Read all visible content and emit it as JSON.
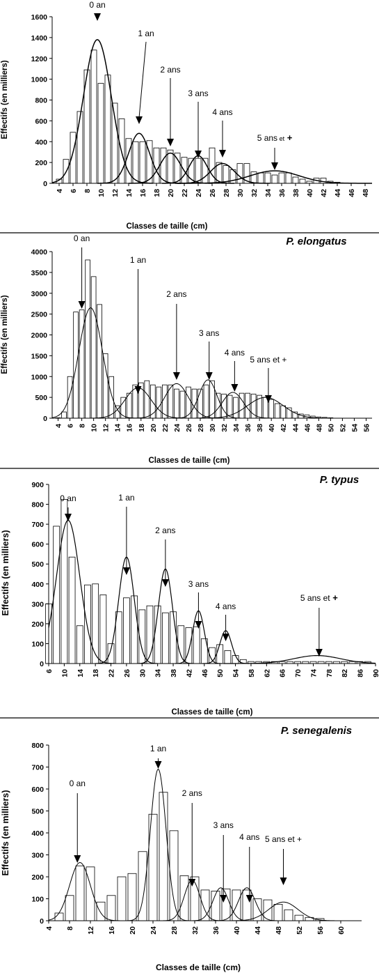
{
  "chart_data": [
    {
      "type": "bar",
      "title": "",
      "xlabel": "Classes de taille (cm)",
      "ylabel": "Effectifs (en milliers)",
      "ylim": [
        0,
        1600
      ],
      "yticks": [
        0,
        200,
        400,
        600,
        800,
        1000,
        1200,
        1400,
        1600
      ],
      "xlim": [
        3,
        49
      ],
      "xticks": [
        4,
        6,
        8,
        10,
        12,
        14,
        16,
        18,
        20,
        22,
        24,
        26,
        28,
        30,
        32,
        34,
        36,
        38,
        40,
        42,
        44,
        46,
        48
      ],
      "grid": false,
      "x": [
        4,
        5,
        6,
        7,
        8,
        9,
        10,
        11,
        12,
        13,
        14,
        15,
        16,
        17,
        18,
        19,
        20,
        21,
        22,
        23,
        24,
        25,
        26,
        27,
        28,
        29,
        30,
        31,
        32,
        33,
        34,
        35,
        36,
        37,
        38,
        39,
        40,
        41,
        42,
        43,
        44
      ],
      "values": [
        40,
        230,
        490,
        690,
        1090,
        1280,
        960,
        1040,
        770,
        620,
        430,
        400,
        400,
        410,
        340,
        340,
        320,
        290,
        250,
        240,
        240,
        240,
        340,
        200,
        170,
        130,
        190,
        190,
        110,
        100,
        100,
        80,
        100,
        100,
        60,
        40,
        20,
        50,
        50,
        20,
        10
      ],
      "series": [
        {
          "label": "0 an",
          "mu": 9.5,
          "sigma": 2.0,
          "peak": 1380
        },
        {
          "label": "1 an",
          "mu": 15.5,
          "sigma": 1.5,
          "peak": 480
        },
        {
          "label": "2 ans",
          "mu": 20,
          "sigma": 1.5,
          "peak": 290
        },
        {
          "label": "3 ans",
          "mu": 24,
          "sigma": 1.3,
          "peak": 265
        },
        {
          "label": "4 ans",
          "mu": 27.5,
          "sigma": 1.7,
          "peak": 190
        },
        {
          "label": "5 ans et +",
          "mu": 35,
          "sigma": 3.5,
          "peak": 120
        }
      ],
      "annotations": [
        {
          "text": "0 an",
          "x": 9.5,
          "y": 1380
        },
        {
          "text": "1 an",
          "x": 15.5,
          "y": 480
        },
        {
          "text": "2 ans",
          "x": 20,
          "y": 290
        },
        {
          "text": "3 ans",
          "x": 24,
          "y": 260
        },
        {
          "text": "4 ans",
          "x": 27.5,
          "y": 200
        },
        {
          "text": "5 ans",
          "suffix_small": "et",
          "suffix": "+",
          "x": 35,
          "y": 120
        }
      ]
    },
    {
      "type": "bar",
      "title": "P. elongatus",
      "xlabel": "Classes de taille (cm)",
      "ylabel": "Effectifs (en milliers)",
      "ylim": [
        0,
        4000
      ],
      "yticks": [
        0,
        500,
        1000,
        1500,
        2000,
        2500,
        3000,
        3500,
        4000
      ],
      "xlim": [
        3,
        57
      ],
      "xticks": [
        4,
        6,
        8,
        10,
        12,
        14,
        16,
        18,
        20,
        22,
        24,
        26,
        28,
        30,
        32,
        34,
        36,
        38,
        40,
        42,
        44,
        46,
        48,
        50,
        52,
        54,
        56
      ],
      "grid": false,
      "x": [
        4,
        5,
        6,
        7,
        8,
        9,
        10,
        11,
        12,
        13,
        14,
        15,
        16,
        17,
        18,
        19,
        20,
        21,
        22,
        23,
        24,
        25,
        26,
        27,
        28,
        29,
        30,
        31,
        32,
        33,
        34,
        35,
        36,
        37,
        38,
        39,
        40,
        41,
        42,
        43,
        44,
        45,
        46,
        47,
        48,
        49,
        50
      ],
      "values": [
        10,
        150,
        1000,
        2550,
        2600,
        3800,
        3400,
        2730,
        1550,
        1000,
        300,
        500,
        600,
        800,
        850,
        900,
        800,
        750,
        800,
        800,
        700,
        650,
        750,
        700,
        700,
        800,
        900,
        600,
        580,
        550,
        500,
        600,
        600,
        580,
        550,
        500,
        450,
        350,
        300,
        250,
        150,
        100,
        80,
        50,
        30,
        20,
        10
      ],
      "series": [
        {
          "label": "0 an",
          "mu": 9.5,
          "sigma": 2.0,
          "peak": 2650
        },
        {
          "label": "1 an",
          "mu": 17.5,
          "sigma": 2.2,
          "peak": 730
        },
        {
          "label": "2 ans",
          "mu": 24,
          "sigma": 2.0,
          "peak": 830
        },
        {
          "label": "3 ans",
          "mu": 29.3,
          "sigma": 1.5,
          "peak": 920
        },
        {
          "label": "4 ans",
          "mu": 33.5,
          "sigma": 1.8,
          "peak": 620
        },
        {
          "label": "5 ans et +",
          "mu": 39,
          "sigma": 3.0,
          "peak": 500
        }
      ],
      "annotations": [
        {
          "text": "0 an",
          "x": 8,
          "y": 2650
        },
        {
          "text": "1 an",
          "x": 17.5,
          "y": 730
        },
        {
          "text": "2 ans",
          "x": 24,
          "y": 830
        },
        {
          "text": "3 ans",
          "x": 29.5,
          "y": 920
        },
        {
          "text": "4 ans",
          "x": 33.8,
          "y": 600
        },
        {
          "text": "5 ans et +",
          "x": 39.5,
          "y": 500
        }
      ]
    },
    {
      "type": "bar",
      "title": "P. typus",
      "xlabel": "Classes de taille (cm)",
      "ylabel": "Effectifs (en milliers)",
      "ylim": [
        0,
        900
      ],
      "yticks": [
        0,
        100,
        200,
        300,
        400,
        500,
        600,
        700,
        800,
        900
      ],
      "xlim": [
        6,
        90
      ],
      "xticks": [
        6,
        10,
        14,
        18,
        22,
        26,
        30,
        34,
        38,
        42,
        46,
        50,
        54,
        58,
        62,
        66,
        70,
        74,
        78,
        82,
        86,
        90
      ],
      "grid": false,
      "x": [
        6,
        8,
        10,
        12,
        14,
        16,
        18,
        20,
        22,
        24,
        26,
        28,
        30,
        32,
        34,
        36,
        38,
        40,
        42,
        44,
        46,
        48,
        50,
        52,
        54,
        56,
        58,
        60,
        62,
        64,
        66,
        68,
        70,
        72,
        74,
        76,
        78,
        80,
        82,
        84,
        86,
        88
      ],
      "values": [
        300,
        690,
        825,
        535,
        190,
        395,
        400,
        345,
        100,
        260,
        330,
        340,
        270,
        290,
        290,
        255,
        260,
        190,
        180,
        185,
        125,
        80,
        95,
        65,
        40,
        20,
        10,
        10,
        10,
        10,
        10,
        10,
        10,
        10,
        10,
        10,
        10,
        10,
        10,
        10,
        10,
        10
      ],
      "series": [
        {
          "label": "0 an",
          "mu": 11,
          "sigma": 3.0,
          "peak": 720
        },
        {
          "label": "1 an",
          "mu": 26,
          "sigma": 2.0,
          "peak": 535
        },
        {
          "label": "2 ans",
          "mu": 36,
          "sigma": 1.8,
          "peak": 475
        },
        {
          "label": "3 ans",
          "mu": 44.5,
          "sigma": 1.5,
          "peak": 265
        },
        {
          "label": "4 ans",
          "mu": 51.5,
          "sigma": 1.5,
          "peak": 165
        },
        {
          "label": "5 ans et +",
          "mu": 75,
          "sigma": 6.0,
          "peak": 40
        }
      ],
      "annotations": [
        {
          "text": "0 an",
          "x": 11,
          "y": 720
        },
        {
          "text": "1 an",
          "x": 26,
          "y": 535
        },
        {
          "text": "2 ans",
          "x": 36,
          "y": 470
        },
        {
          "text": "3 ans",
          "x": 44.5,
          "y": 260
        },
        {
          "text": "4 ans",
          "x": 51.5,
          "y": 160
        },
        {
          "text": "5 ans et",
          "suffix": "+",
          "x": 75.5,
          "y": 45
        }
      ]
    },
    {
      "type": "bar",
      "title": "P. senegalenis",
      "xlabel": "Classes de taille (cm)",
      "ylabel": "Effectifs (en milliers)",
      "ylim": [
        0,
        800
      ],
      "yticks": [
        0,
        100,
        200,
        300,
        400,
        500,
        600,
        700,
        800
      ],
      "xlim": [
        4,
        64
      ],
      "xticks": [
        4,
        8,
        12,
        16,
        20,
        24,
        28,
        32,
        36,
        40,
        44,
        48,
        52,
        56,
        60
      ],
      "grid": false,
      "x": [
        6,
        8,
        10,
        12,
        14,
        16,
        18,
        20,
        22,
        24,
        26,
        28,
        30,
        32,
        34,
        36,
        38,
        40,
        42,
        44,
        46,
        48,
        50,
        52,
        54,
        56
      ],
      "values": [
        35,
        115,
        250,
        245,
        85,
        115,
        200,
        215,
        315,
        485,
        585,
        410,
        205,
        200,
        140,
        135,
        145,
        140,
        140,
        100,
        95,
        75,
        50,
        25,
        15,
        10
      ],
      "series": [
        {
          "label": "0 an",
          "mu": 10,
          "sigma": 2.0,
          "peak": 265
        },
        {
          "label": "1 an",
          "mu": 25,
          "sigma": 1.5,
          "peak": 690
        },
        {
          "label": "2 ans",
          "mu": 31.5,
          "sigma": 1.5,
          "peak": 185
        },
        {
          "label": "3 ans",
          "mu": 37,
          "sigma": 1.5,
          "peak": 150
        },
        {
          "label": "4 ans",
          "mu": 42,
          "sigma": 1.6,
          "peak": 150
        },
        {
          "label": "5 ans et +",
          "mu": 49,
          "sigma": 2.8,
          "peak": 85
        }
      ],
      "annotations": [
        {
          "text": "0 an",
          "x": 9.5,
          "y": 260
        },
        {
          "text": "1 an",
          "x": 25,
          "y": 690
        },
        {
          "text": "2 ans",
          "x": 31.5,
          "y": 190
        },
        {
          "text": "3 ans",
          "x": 37.5,
          "y": 150
        },
        {
          "text": "4 ans",
          "x": 42.5,
          "y": 150
        },
        {
          "text": "5 ans et +",
          "x": 49,
          "y": 85
        }
      ]
    }
  ]
}
